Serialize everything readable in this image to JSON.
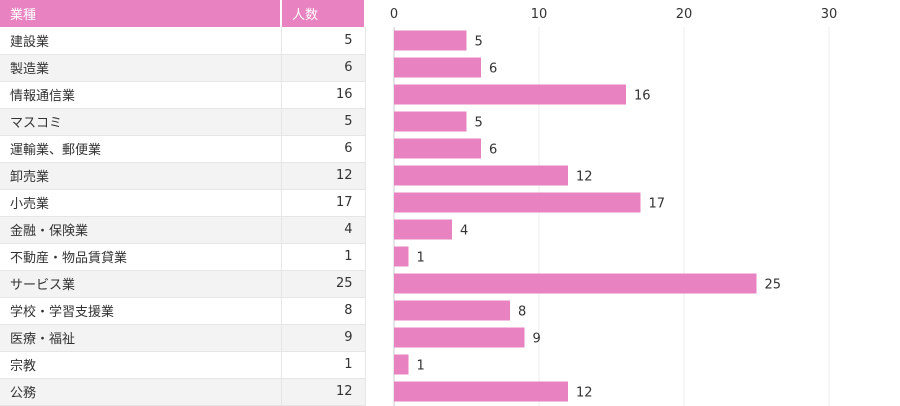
{
  "table": {
    "headers": [
      "業種",
      "人数"
    ]
  },
  "chart_data": {
    "type": "bar",
    "orientation": "horizontal",
    "categories": [
      "建設業",
      "製造業",
      "情報通信業",
      "マスコミ",
      "運輸業、郵便業",
      "卸売業",
      "小売業",
      "金融・保険業",
      "不動産・物品賃貸業",
      "サービス業",
      "学校・学習支援業",
      "医療・福祉",
      "宗教",
      "公務"
    ],
    "values": [
      5,
      6,
      16,
      5,
      6,
      12,
      17,
      4,
      1,
      25,
      8,
      9,
      1,
      12
    ],
    "xticks": [
      0,
      10,
      20,
      30
    ],
    "xlim": [
      0,
      35
    ],
    "color": "#e882c0",
    "grid": true
  }
}
